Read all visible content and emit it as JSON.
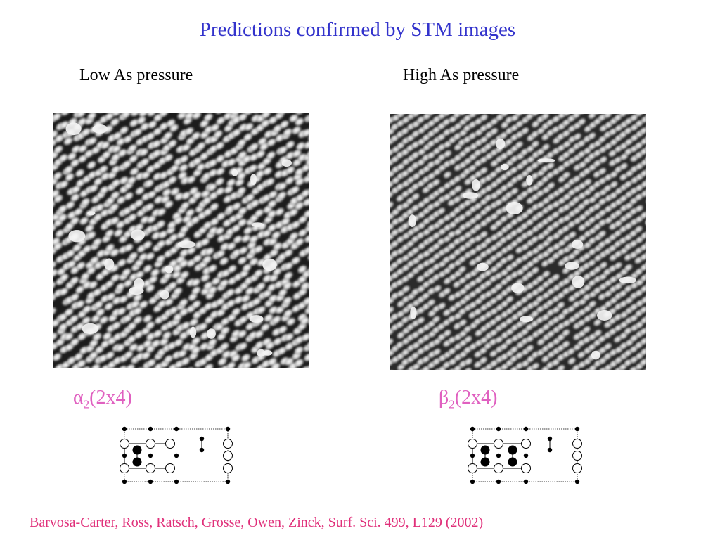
{
  "slide": {
    "title": "Predictions  confirmed by STM images",
    "panels": [
      {
        "label": "Low As pressure",
        "stm_image": "stm-scan-low-as-pressure",
        "reconstruction": {
          "symbol": "α",
          "subscript": "2",
          "cell": "(2x4)"
        },
        "schematic": "alpha2-2x4-unit-cell"
      },
      {
        "label": "High As pressure",
        "stm_image": "stm-scan-high-as-pressure",
        "reconstruction": {
          "symbol": "β",
          "subscript": "2",
          "cell": "(2x4)"
        },
        "schematic": "beta2-2x4-unit-cell"
      }
    ],
    "citation": "Barvosa-Carter, Ross, Ratsch, Grosse, Owen, Zinck, Surf. Sci. 499, L129 (2002)",
    "colors": {
      "title": "#3333cc",
      "reconstruction": "#e060c0",
      "citation": "#e0307a"
    }
  }
}
